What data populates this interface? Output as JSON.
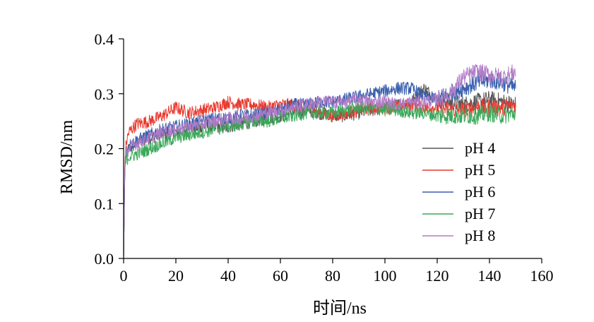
{
  "chart_data": {
    "type": "line",
    "xlabel": "时间/ns",
    "ylabel": "RMSD/nm",
    "xlim": [
      0,
      160
    ],
    "ylim": [
      0,
      0.4
    ],
    "xticks": [
      "0",
      "20",
      "40",
      "60",
      "80",
      "100",
      "120",
      "140",
      "160"
    ],
    "yticks": [
      "0.0",
      "0.1",
      "0.2",
      "0.3",
      "0.4"
    ],
    "grid": false,
    "legend_position": "right",
    "x": [
      0,
      0.5,
      1,
      2,
      5,
      10,
      15,
      20,
      25,
      30,
      35,
      40,
      45,
      50,
      55,
      60,
      65,
      70,
      75,
      80,
      85,
      90,
      95,
      100,
      105,
      110,
      115,
      120,
      125,
      130,
      135,
      140,
      145,
      150
    ],
    "series": [
      {
        "name": "pH 4",
        "color": "#555555",
        "values": [
          0.0,
          0.17,
          0.19,
          0.2,
          0.21,
          0.22,
          0.225,
          0.23,
          0.235,
          0.24,
          0.24,
          0.24,
          0.245,
          0.25,
          0.255,
          0.26,
          0.265,
          0.27,
          0.265,
          0.26,
          0.26,
          0.265,
          0.27,
          0.275,
          0.28,
          0.285,
          0.31,
          0.29,
          0.285,
          0.28,
          0.285,
          0.29,
          0.285,
          0.28
        ]
      },
      {
        "name": "pH 5",
        "color": "#e8392e",
        "values": [
          0.0,
          0.18,
          0.21,
          0.23,
          0.245,
          0.25,
          0.26,
          0.275,
          0.265,
          0.27,
          0.275,
          0.285,
          0.28,
          0.28,
          0.275,
          0.28,
          0.28,
          0.275,
          0.265,
          0.26,
          0.265,
          0.27,
          0.275,
          0.275,
          0.275,
          0.28,
          0.275,
          0.275,
          0.27,
          0.27,
          0.275,
          0.275,
          0.275,
          0.28
        ]
      },
      {
        "name": "pH 6",
        "color": "#3a5fae",
        "values": [
          0.0,
          0.17,
          0.19,
          0.205,
          0.215,
          0.225,
          0.235,
          0.24,
          0.245,
          0.25,
          0.255,
          0.255,
          0.26,
          0.26,
          0.265,
          0.27,
          0.28,
          0.28,
          0.285,
          0.285,
          0.29,
          0.295,
          0.3,
          0.305,
          0.31,
          0.31,
          0.295,
          0.29,
          0.3,
          0.31,
          0.32,
          0.325,
          0.32,
          0.31
        ]
      },
      {
        "name": "pH 7",
        "color": "#3aa95a",
        "values": [
          0.0,
          0.165,
          0.18,
          0.185,
          0.19,
          0.2,
          0.21,
          0.22,
          0.225,
          0.23,
          0.235,
          0.24,
          0.245,
          0.25,
          0.25,
          0.255,
          0.26,
          0.265,
          0.265,
          0.265,
          0.27,
          0.275,
          0.275,
          0.27,
          0.27,
          0.265,
          0.265,
          0.26,
          0.26,
          0.26,
          0.26,
          0.265,
          0.26,
          0.265
        ]
      },
      {
        "name": "pH 8",
        "color": "#b07cc6",
        "values": [
          0.0,
          0.17,
          0.19,
          0.2,
          0.21,
          0.22,
          0.23,
          0.235,
          0.24,
          0.245,
          0.25,
          0.255,
          0.255,
          0.26,
          0.265,
          0.27,
          0.275,
          0.28,
          0.285,
          0.285,
          0.285,
          0.29,
          0.285,
          0.285,
          0.28,
          0.285,
          0.285,
          0.29,
          0.3,
          0.33,
          0.34,
          0.335,
          0.33,
          0.34
        ]
      }
    ]
  }
}
